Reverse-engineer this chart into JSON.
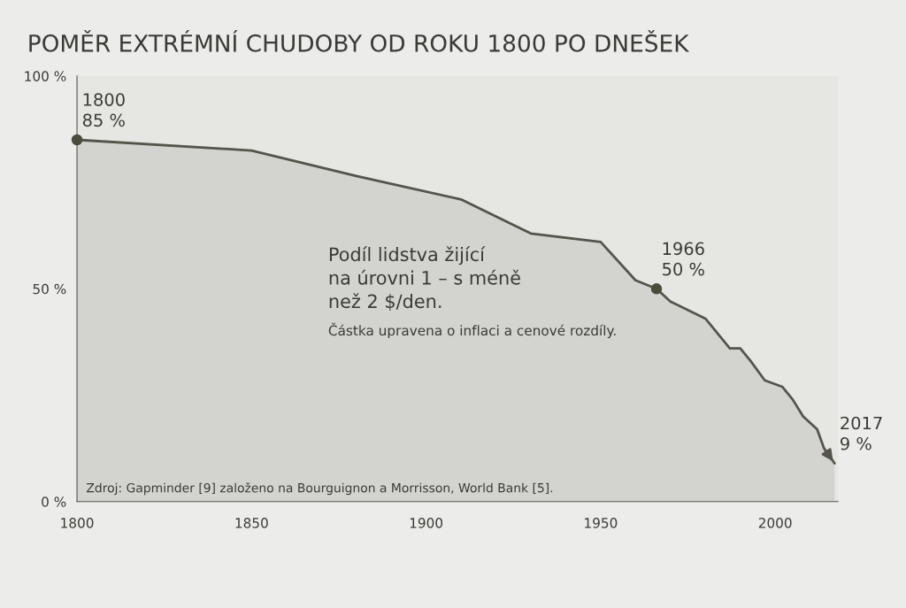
{
  "chart_data": {
    "type": "area",
    "title": "POMĚR EXTRÉMNÍ CHUDOBY OD ROKU 1800 PO DNEŠEK",
    "series": [
      {
        "color": "#55544c",
        "x": [
          1800,
          1850,
          1880,
          1910,
          1930,
          1950,
          1960,
          1966,
          1970,
          1980,
          1987,
          1990,
          1993,
          1997,
          2002,
          2005,
          2008,
          2012,
          2014,
          2017
        ],
        "values": [
          85,
          82.5,
          76.5,
          71,
          63,
          61,
          52,
          50,
          47,
          43,
          36,
          36,
          33,
          28.5,
          27,
          24,
          20,
          17,
          12.5,
          9
        ]
      },
      {
        "type": "scatter",
        "color": "#4b4d3a",
        "marker": "circle",
        "x": [
          1800,
          1966
        ],
        "values": [
          85,
          50
        ]
      }
    ],
    "xlim": [
      1800,
      2018
    ],
    "ylim": [
      0,
      100
    ],
    "xticks": [
      1800,
      1850,
      1900,
      1950,
      2000
    ],
    "yticks": [
      {
        "value": 0,
        "label": "0 %"
      },
      {
        "value": 50,
        "label": "50 %"
      },
      {
        "value": 100,
        "label": "100 %"
      }
    ],
    "grid": false,
    "annotations": [
      {
        "text": "1800\n85 %",
        "x": 1800,
        "y": 85
      },
      {
        "text": "1966\n50 %",
        "x": 1966,
        "y": 50
      },
      {
        "text": "2017\n9 %",
        "x": 2017,
        "y": 9
      },
      "Podíl lidstva žijící\nna úrovni 1 – s méně\nnež 2 $/den.",
      "Částka upravena o inflaci a cenové rozdíly.",
      "Zdroj: Gapminder [9] založeno na Bourguignon a Morrisson, World Bank [5]."
    ]
  }
}
